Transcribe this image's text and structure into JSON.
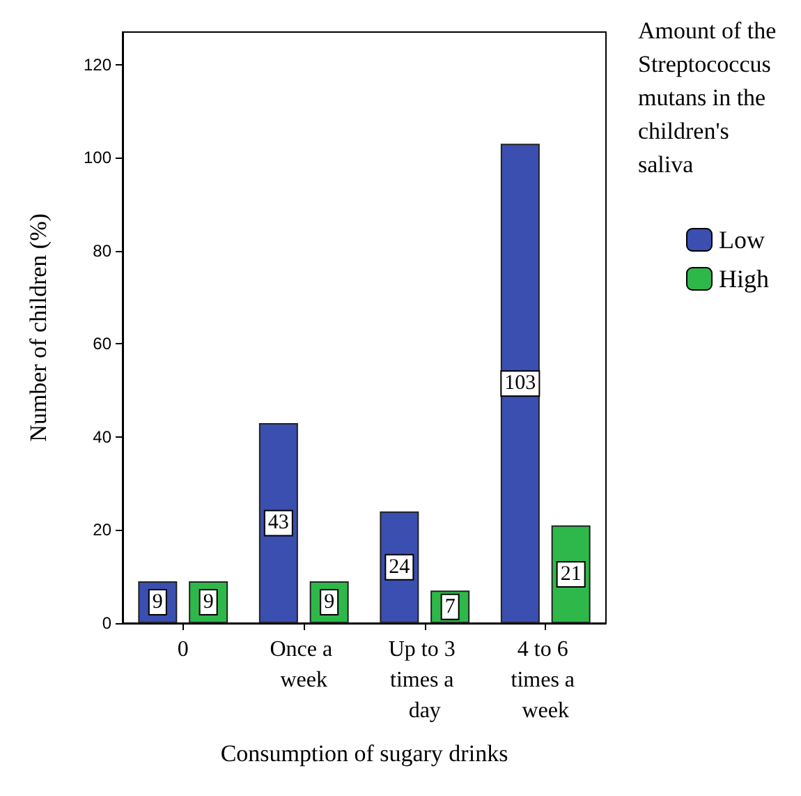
{
  "chart_data": {
    "type": "bar",
    "xlabel": "Consumption of sugary drinks",
    "ylabel": "Number of children (%)",
    "legend_title": "Amount of the Streptococcus mutans in the children's saliva",
    "categories": [
      "0",
      "Once a week",
      "Up to 3 times a day",
      "4 to 6 times a week"
    ],
    "series": [
      {
        "name": "Low",
        "color": "#3a4fb0",
        "values": [
          9,
          43,
          24,
          103
        ]
      },
      {
        "name": "High",
        "color": "#2fb84a",
        "values": [
          9,
          9,
          7,
          21
        ]
      }
    ],
    "ylim": [
      0,
      127
    ],
    "yticks": [
      0,
      20,
      40,
      60,
      80,
      100,
      120
    ],
    "data_labels": true,
    "legend": "top right",
    "grid": false
  }
}
